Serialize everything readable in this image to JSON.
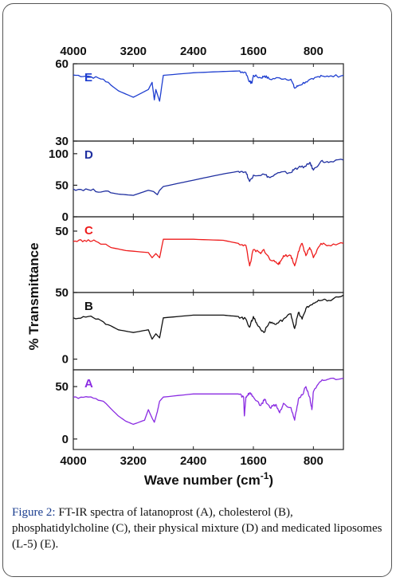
{
  "figure": {
    "label": "Figure 2:",
    "caption": "FT-IR spectra of latanoprost (A), cholesterol (B), phosphatidylcholine (C), their physical mixture (D) and medicated liposomes (L-5) (E)."
  },
  "chart_data": {
    "type": "line",
    "xlabel": "Wave number (cm",
    "xlabel_sup": "-1",
    "xlabel_close": ")",
    "ylabel": "% Transmittance",
    "xlim": [
      4000,
      400
    ],
    "x_ticks": [
      4000,
      3200,
      2400,
      1600,
      800
    ],
    "x_tick_labels": [
      "4000",
      "3200",
      "2400",
      "1600",
      "800"
    ],
    "panels": [
      {
        "label": "E",
        "color": "#1f3fd0",
        "ylim": [
          30,
          60
        ],
        "y_ticks": [
          30,
          60
        ],
        "y_tick_labels": [
          "30",
          "60"
        ],
        "points": [
          [
            4000,
            55.6
          ],
          [
            3800,
            55.2
          ],
          [
            3600,
            54.0
          ],
          [
            3400,
            49.5
          ],
          [
            3200,
            47.0
          ],
          [
            3000,
            50.0
          ],
          [
            2950,
            52.8
          ],
          [
            2920,
            46.0
          ],
          [
            2900,
            50.0
          ],
          [
            2850,
            45.5
          ],
          [
            2800,
            55.5
          ],
          [
            2400,
            56.5
          ],
          [
            2000,
            57.0
          ],
          [
            1800,
            57.2
          ],
          [
            1700,
            56.5
          ],
          [
            1650,
            53.0
          ],
          [
            1620,
            52.5
          ],
          [
            1600,
            55.5
          ],
          [
            1500,
            54.5
          ],
          [
            1450,
            55.3
          ],
          [
            1380,
            54.0
          ],
          [
            1250,
            54.5
          ],
          [
            1100,
            54.0
          ],
          [
            1050,
            50.5
          ],
          [
            1000,
            51.5
          ],
          [
            900,
            53.0
          ],
          [
            800,
            54.0
          ],
          [
            700,
            55.5
          ],
          [
            600,
            55.0
          ],
          [
            400,
            55.5
          ]
        ]
      },
      {
        "label": "D",
        "color": "#1f2fa0",
        "ylim": [
          0,
          120
        ],
        "y_ticks": [
          0,
          50,
          100
        ],
        "y_tick_labels": [
          "0",
          "50",
          "100"
        ],
        "points": [
          [
            4000,
            44
          ],
          [
            3800,
            43
          ],
          [
            3600,
            40
          ],
          [
            3400,
            36
          ],
          [
            3200,
            34
          ],
          [
            3000,
            42
          ],
          [
            2930,
            40
          ],
          [
            2880,
            35
          ],
          [
            2850,
            42
          ],
          [
            2800,
            48
          ],
          [
            2400,
            58
          ],
          [
            2000,
            68
          ],
          [
            1800,
            72
          ],
          [
            1700,
            71
          ],
          [
            1650,
            56
          ],
          [
            1600,
            66
          ],
          [
            1450,
            67
          ],
          [
            1380,
            62
          ],
          [
            1250,
            70
          ],
          [
            1100,
            70
          ],
          [
            1050,
            76
          ],
          [
            1000,
            78
          ],
          [
            900,
            80
          ],
          [
            850,
            86
          ],
          [
            800,
            74
          ],
          [
            700,
            88
          ],
          [
            600,
            86
          ],
          [
            400,
            90
          ]
        ]
      },
      {
        "label": "C",
        "color": "#ee1c1c",
        "ylim": [
          20,
          57
        ],
        "y_ticks": [
          50
        ],
        "y_tick_labels": [
          "50"
        ],
        "points": [
          [
            4000,
            45
          ],
          [
            3850,
            45.5
          ],
          [
            3700,
            45
          ],
          [
            3500,
            42
          ],
          [
            3300,
            40.5
          ],
          [
            3000,
            39.5
          ],
          [
            2950,
            37
          ],
          [
            2900,
            39
          ],
          [
            2850,
            37
          ],
          [
            2800,
            46
          ],
          [
            2400,
            46
          ],
          [
            2000,
            45.5
          ],
          [
            1800,
            44
          ],
          [
            1700,
            43
          ],
          [
            1650,
            33
          ],
          [
            1600,
            41
          ],
          [
            1500,
            39
          ],
          [
            1460,
            41
          ],
          [
            1380,
            36
          ],
          [
            1300,
            35
          ],
          [
            1250,
            34
          ],
          [
            1200,
            38
          ],
          [
            1100,
            38
          ],
          [
            1050,
            33
          ],
          [
            1000,
            40
          ],
          [
            950,
            44
          ],
          [
            900,
            38
          ],
          [
            850,
            42
          ],
          [
            800,
            37
          ],
          [
            700,
            44
          ],
          [
            600,
            43
          ],
          [
            400,
            44
          ]
        ]
      },
      {
        "label": "B",
        "color": "#111111",
        "ylim": [
          -8,
          50
        ],
        "y_ticks": [
          0,
          50
        ],
        "y_tick_labels": [
          "0",
          "50"
        ],
        "points": [
          [
            4000,
            31
          ],
          [
            3800,
            32
          ],
          [
            3600,
            28
          ],
          [
            3400,
            22
          ],
          [
            3200,
            20
          ],
          [
            3000,
            22
          ],
          [
            2950,
            15
          ],
          [
            2900,
            19
          ],
          [
            2850,
            16
          ],
          [
            2800,
            31
          ],
          [
            2400,
            33
          ],
          [
            2000,
            33
          ],
          [
            1800,
            32
          ],
          [
            1700,
            30
          ],
          [
            1650,
            24
          ],
          [
            1600,
            32
          ],
          [
            1550,
            26
          ],
          [
            1460,
            20
          ],
          [
            1380,
            28
          ],
          [
            1300,
            26
          ],
          [
            1200,
            30
          ],
          [
            1100,
            34
          ],
          [
            1050,
            23
          ],
          [
            1000,
            35
          ],
          [
            950,
            30
          ],
          [
            900,
            38
          ],
          [
            800,
            42
          ],
          [
            700,
            44
          ],
          [
            600,
            44
          ],
          [
            400,
            48
          ]
        ]
      },
      {
        "label": "A",
        "color": "#8a2be2",
        "ylim": [
          -10,
          66
        ],
        "y_ticks": [
          0,
          50
        ],
        "y_tick_labels": [
          "0",
          "50"
        ],
        "points": [
          [
            4000,
            40
          ],
          [
            3800,
            40
          ],
          [
            3600,
            36
          ],
          [
            3400,
            22
          ],
          [
            3300,
            17
          ],
          [
            3200,
            14
          ],
          [
            3050,
            18
          ],
          [
            3000,
            28
          ],
          [
            2950,
            20
          ],
          [
            2920,
            16
          ],
          [
            2880,
            26
          ],
          [
            2850,
            36
          ],
          [
            2800,
            40
          ],
          [
            2400,
            43
          ],
          [
            2000,
            43
          ],
          [
            1800,
            43
          ],
          [
            1730,
            40
          ],
          [
            1720,
            22
          ],
          [
            1700,
            40
          ],
          [
            1650,
            44
          ],
          [
            1600,
            40
          ],
          [
            1500,
            32
          ],
          [
            1450,
            38
          ],
          [
            1380,
            30
          ],
          [
            1300,
            33
          ],
          [
            1250,
            25
          ],
          [
            1200,
            34
          ],
          [
            1100,
            30
          ],
          [
            1050,
            18
          ],
          [
            1000,
            38
          ],
          [
            950,
            42
          ],
          [
            900,
            50
          ],
          [
            850,
            40
          ],
          [
            820,
            28
          ],
          [
            800,
            45
          ],
          [
            700,
            55
          ],
          [
            600,
            57
          ],
          [
            400,
            58
          ]
        ]
      }
    ]
  }
}
